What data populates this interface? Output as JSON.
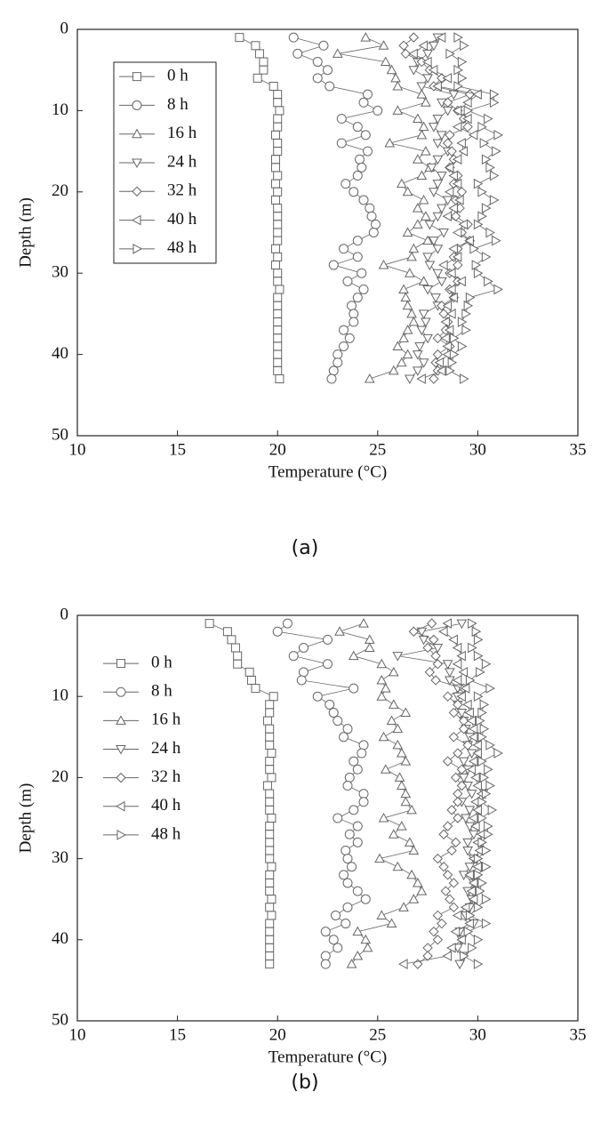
{
  "chart_data": [
    {
      "type": "line",
      "caption": "(a)",
      "xlabel": "Temperature (°C)",
      "ylabel": "Depth (m)",
      "xlim": [
        10,
        35
      ],
      "xticks": [
        10,
        15,
        20,
        25,
        30,
        35
      ],
      "ylim": [
        50,
        0
      ],
      "yticks": [
        0,
        10,
        20,
        30,
        40,
        50
      ],
      "legend": "upper left",
      "legend_frame": true,
      "y": [
        1,
        2,
        3,
        4,
        5,
        6,
        7,
        8,
        9,
        10,
        11,
        12,
        13,
        14,
        15,
        16,
        17,
        18,
        19,
        20,
        21,
        22,
        23,
        24,
        25,
        26,
        27,
        28,
        29,
        30,
        31,
        32,
        33,
        34,
        35,
        36,
        37,
        38,
        39,
        40,
        41,
        42,
        43
      ],
      "series": [
        {
          "name": "0 h",
          "marker": "square",
          "color": "#666666",
          "values": [
            18.1,
            18.9,
            19.1,
            19.3,
            19.3,
            19.0,
            19.8,
            20.0,
            20.0,
            20.1,
            20.0,
            20.0,
            19.9,
            20.0,
            20.0,
            19.9,
            19.9,
            20.0,
            19.9,
            20.0,
            19.9,
            20.0,
            20.0,
            20.0,
            20.0,
            20.0,
            19.9,
            20.0,
            19.9,
            20.0,
            20.0,
            20.1,
            20.0,
            20.0,
            20.0,
            20.0,
            20.0,
            20.0,
            20.0,
            20.0,
            20.0,
            20.0,
            20.1
          ]
        },
        {
          "name": "8 h",
          "marker": "circle",
          "color": "#666666",
          "values": [
            20.8,
            22.3,
            21.0,
            22.0,
            22.5,
            22.0,
            22.6,
            24.5,
            24.3,
            25.0,
            23.2,
            24.0,
            24.4,
            23.2,
            24.5,
            24.1,
            24.2,
            24.0,
            23.4,
            23.8,
            24.3,
            24.6,
            24.7,
            24.9,
            24.8,
            24.0,
            23.3,
            24.0,
            22.8,
            24.2,
            23.5,
            24.3,
            24.0,
            23.7,
            23.8,
            23.8,
            23.3,
            23.6,
            23.3,
            23.0,
            23.0,
            22.8,
            22.7
          ]
        },
        {
          "name": "16 h",
          "marker": "triangle-up",
          "color": "#666666",
          "values": [
            24.4,
            25.3,
            23.0,
            25.4,
            25.7,
            25.9,
            26.0,
            27.2,
            27.4,
            26.0,
            27.0,
            27.3,
            27.2,
            25.6,
            27.4,
            27.0,
            27.6,
            27.2,
            26.2,
            26.5,
            27.3,
            27.0,
            27.4,
            27.0,
            26.5,
            27.5,
            26.8,
            26.7,
            25.3,
            26.6,
            27.3,
            26.3,
            26.4,
            26.5,
            26.7,
            26.8,
            26.5,
            26.3,
            26.0,
            26.5,
            26.2,
            25.8,
            24.6
          ]
        },
        {
          "name": "24 h",
          "marker": "triangle-down",
          "color": "#666666",
          "values": [
            28.0,
            27.8,
            27.5,
            27.0,
            26.8,
            27.5,
            27.2,
            28.8,
            28.2,
            28.5,
            28.0,
            27.8,
            28.2,
            28.0,
            28.5,
            28.0,
            27.7,
            28.2,
            28.0,
            27.8,
            28.5,
            28.2,
            28.0,
            27.6,
            28.3,
            27.8,
            28.0,
            27.5,
            27.6,
            28.0,
            28.2,
            27.5,
            27.9,
            28.0,
            27.3,
            27.4,
            27.2,
            27.5,
            27.1,
            27.0,
            27.3,
            27.0,
            26.6
          ]
        },
        {
          "name": "32 h",
          "marker": "diamond",
          "color": "#666666",
          "values": [
            26.8,
            26.3,
            26.4,
            27.2,
            27.6,
            28.2,
            27.8,
            29.6,
            28.5,
            29.0,
            29.3,
            29.5,
            28.6,
            28.5,
            28.7,
            28.8,
            28.6,
            29.0,
            28.8,
            29.2,
            28.9,
            29.1,
            28.9,
            29.5,
            29.2,
            29.6,
            29.0,
            28.8,
            29.0,
            28.6,
            29.0,
            28.6,
            28.8,
            28.2,
            28.3,
            28.5,
            28.4,
            28.0,
            28.6,
            28.0,
            27.9,
            28.0,
            27.8
          ]
        },
        {
          "name": "40 h",
          "marker": "triangle-left",
          "color": "#666666",
          "values": [
            28.2,
            27.3,
            26.8,
            27.5,
            27.8,
            28.5,
            28.0,
            30.0,
            29.5,
            29.0,
            29.5,
            29.0,
            29.8,
            29.2,
            29.3,
            29.0,
            28.6,
            28.8,
            29.0,
            28.6,
            29.1,
            28.8,
            28.5,
            29.3,
            29.0,
            29.6,
            28.8,
            29.0,
            28.3,
            28.7,
            29.2,
            28.7,
            28.8,
            28.5,
            28.7,
            28.4,
            28.6,
            28.4,
            28.5,
            28.5,
            28.1,
            28.2,
            27.2
          ]
        },
        {
          "name": "48 h",
          "marker": "triangle-right",
          "color": "#666666",
          "values": [
            29.0,
            29.3,
            28.6,
            29.2,
            29.0,
            29.2,
            29.0,
            30.8,
            30.8,
            29.5,
            30.5,
            30.2,
            31.0,
            30.3,
            30.9,
            30.4,
            30.6,
            30.8,
            30.0,
            30.2,
            30.8,
            30.4,
            30.2,
            30.0,
            30.6,
            30.9,
            29.8,
            30.4,
            29.9,
            30.0,
            30.5,
            31.0,
            29.6,
            29.5,
            29.4,
            29.2,
            29.4,
            28.8,
            29.2,
            28.8,
            28.7,
            28.6,
            29.3
          ]
        }
      ]
    },
    {
      "type": "line",
      "caption": "(b)",
      "xlabel": "Temperature (°C)",
      "ylabel": "Depth (m)",
      "xlim": [
        10,
        35
      ],
      "xticks": [
        10,
        15,
        20,
        25,
        30,
        35
      ],
      "ylim": [
        50,
        0
      ],
      "yticks": [
        0,
        10,
        20,
        30,
        40,
        50
      ],
      "legend": "upper left",
      "legend_frame": false,
      "y": [
        1,
        2,
        3,
        4,
        5,
        6,
        7,
        8,
        9,
        10,
        11,
        12,
        13,
        14,
        15,
        16,
        17,
        18,
        19,
        20,
        21,
        22,
        23,
        24,
        25,
        26,
        27,
        28,
        29,
        30,
        31,
        32,
        33,
        34,
        35,
        36,
        37,
        38,
        39,
        40,
        41,
        42,
        43
      ],
      "series": [
        {
          "name": "0 h",
          "marker": "square",
          "color": "#666666",
          "values": [
            16.6,
            17.5,
            17.7,
            17.9,
            18.0,
            18.0,
            18.6,
            18.7,
            18.9,
            19.8,
            19.6,
            19.6,
            19.5,
            19.6,
            19.6,
            19.6,
            19.7,
            19.6,
            19.6,
            19.7,
            19.5,
            19.6,
            19.6,
            19.6,
            19.7,
            19.6,
            19.6,
            19.6,
            19.6,
            19.6,
            19.7,
            19.6,
            19.6,
            19.6,
            19.7,
            19.6,
            19.7,
            19.6,
            19.6,
            19.6,
            19.6,
            19.6,
            19.6
          ]
        },
        {
          "name": "8 h",
          "marker": "circle",
          "color": "#666666",
          "values": [
            20.5,
            20.0,
            22.5,
            21.3,
            20.8,
            22.5,
            21.3,
            21.2,
            23.8,
            22.0,
            22.6,
            22.8,
            23.0,
            23.5,
            23.3,
            24.3,
            24.2,
            23.8,
            24.0,
            23.6,
            23.5,
            24.3,
            24.3,
            23.8,
            23.0,
            24.0,
            23.6,
            24.0,
            23.4,
            23.5,
            23.7,
            23.3,
            23.5,
            24.0,
            24.4,
            23.5,
            22.9,
            23.4,
            22.4,
            22.8,
            23.0,
            22.4,
            22.4
          ]
        },
        {
          "name": "16 h",
          "marker": "triangle-up",
          "color": "#666666",
          "values": [
            24.3,
            23.1,
            24.6,
            24.6,
            23.8,
            25.2,
            25.8,
            25.2,
            25.4,
            25.2,
            25.8,
            26.4,
            25.7,
            26.0,
            25.3,
            26.0,
            26.2,
            26.4,
            25.4,
            26.1,
            26.2,
            26.4,
            26.4,
            26.7,
            25.3,
            26.2,
            25.8,
            26.6,
            26.8,
            25.1,
            26.0,
            26.7,
            27.0,
            27.2,
            26.8,
            26.3,
            25.2,
            25.7,
            24.0,
            24.4,
            24.5,
            24.0,
            23.7
          ]
        },
        {
          "name": "24 h",
          "marker": "triangle-down",
          "color": "#666666",
          "values": [
            29.2,
            27.2,
            27.3,
            28.0,
            26.0,
            28.5,
            28.6,
            28.6,
            29.0,
            29.0,
            29.0,
            29.2,
            29.3,
            29.4,
            29.6,
            29.5,
            29.7,
            29.3,
            29.5,
            29.3,
            29.5,
            29.7,
            29.2,
            29.6,
            29.4,
            29.6,
            29.8,
            29.5,
            29.5,
            29.8,
            29.6,
            29.3,
            29.8,
            29.5,
            29.7,
            29.6,
            29.4,
            29.8,
            29.1,
            29.2,
            29.0,
            29.3,
            29.1
          ]
        },
        {
          "name": "32 h",
          "marker": "diamond",
          "color": "#666666",
          "values": [
            27.7,
            26.8,
            27.8,
            27.5,
            27.9,
            28.0,
            27.6,
            27.9,
            29.3,
            28.5,
            29.0,
            28.8,
            29.3,
            29.3,
            28.8,
            29.5,
            29.0,
            28.5,
            29.2,
            28.9,
            29.2,
            29.0,
            29.0,
            28.7,
            29.0,
            28.5,
            28.3,
            28.9,
            28.7,
            28.0,
            28.3,
            28.5,
            28.8,
            28.4,
            28.6,
            28.8,
            28.0,
            28.2,
            27.8,
            28.0,
            27.5,
            27.5,
            27.0
          ]
        },
        {
          "name": "40 h",
          "marker": "triangle-left",
          "color": "#666666",
          "values": [
            28.5,
            28.3,
            28.8,
            29.0,
            29.2,
            29.0,
            29.3,
            29.0,
            29.4,
            29.2,
            29.5,
            29.6,
            29.7,
            29.8,
            29.8,
            30.0,
            30.0,
            29.8,
            29.7,
            29.9,
            30.0,
            30.2,
            29.9,
            30.0,
            29.8,
            29.9,
            30.2,
            30.0,
            30.1,
            29.8,
            30.0,
            29.6,
            29.8,
            29.7,
            29.8,
            29.4,
            29.0,
            29.6,
            28.9,
            29.2,
            28.7,
            28.5,
            26.3
          ]
        },
        {
          "name": "48 h",
          "marker": "triangle-right",
          "color": "#666666",
          "values": [
            29.7,
            29.9,
            30.0,
            29.7,
            30.0,
            30.4,
            30.1,
            29.6,
            30.6,
            30.0,
            30.3,
            30.2,
            30.1,
            30.3,
            30.2,
            30.6,
            31.0,
            30.2,
            30.5,
            30.3,
            30.6,
            30.4,
            30.2,
            30.7,
            30.2,
            30.5,
            30.5,
            30.2,
            30.4,
            30.0,
            30.4,
            30.0,
            30.2,
            30.1,
            30.4,
            30.0,
            29.6,
            30.4,
            29.5,
            30.0,
            29.7,
            29.3,
            30.0
          ]
        }
      ]
    }
  ]
}
